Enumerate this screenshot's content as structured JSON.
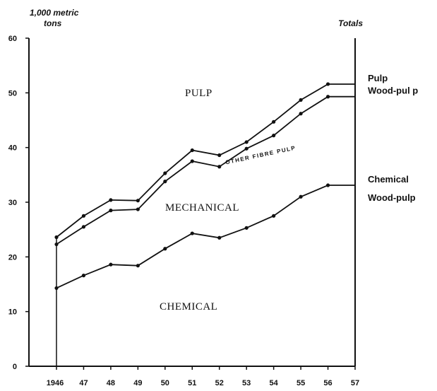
{
  "chart_data": {
    "type": "area",
    "unit_label_line1": "1,000 metric",
    "unit_label_line2": "tons",
    "totals_label": "Totals",
    "x_tick_labels": [
      "1946",
      "47",
      "48",
      "49",
      "50",
      "51",
      "52",
      "53",
      "54",
      "55",
      "56",
      "57"
    ],
    "x": [
      1946,
      1947,
      1948,
      1949,
      1950,
      1951,
      1952,
      1953,
      1954,
      1955,
      1956,
      1957
    ],
    "y_ticks": [
      0,
      10,
      20,
      30,
      40,
      50,
      60
    ],
    "ylim": [
      0,
      60
    ],
    "series": [
      {
        "key": "pulp",
        "values": [
          23.6,
          27.5,
          30.4,
          30.3,
          35.3,
          39.5,
          38.6,
          41.0,
          44.7,
          48.7,
          51.6,
          51.6
        ]
      },
      {
        "key": "wood",
        "values": [
          22.3,
          25.5,
          28.5,
          28.7,
          33.8,
          37.5,
          36.5,
          39.8,
          42.2,
          46.2,
          49.3,
          49.3
        ]
      },
      {
        "key": "chemical",
        "values": [
          14.3,
          16.6,
          18.6,
          18.4,
          21.5,
          24.3,
          23.5,
          25.3,
          27.5,
          31.0,
          33.1,
          33.1
        ]
      }
    ],
    "end_labels": {
      "pulp": [
        "Pulp"
      ],
      "wood": [
        "Wood-pul p"
      ],
      "chemical": [
        "Chemical",
        "Wood-pulp"
      ]
    },
    "region_labels": {
      "pulp": "PULP",
      "mechanical": "MECHANICAL",
      "chemical": "CHEMICAL",
      "other": "OTHER FIBRE PULP"
    },
    "grid": false
  }
}
